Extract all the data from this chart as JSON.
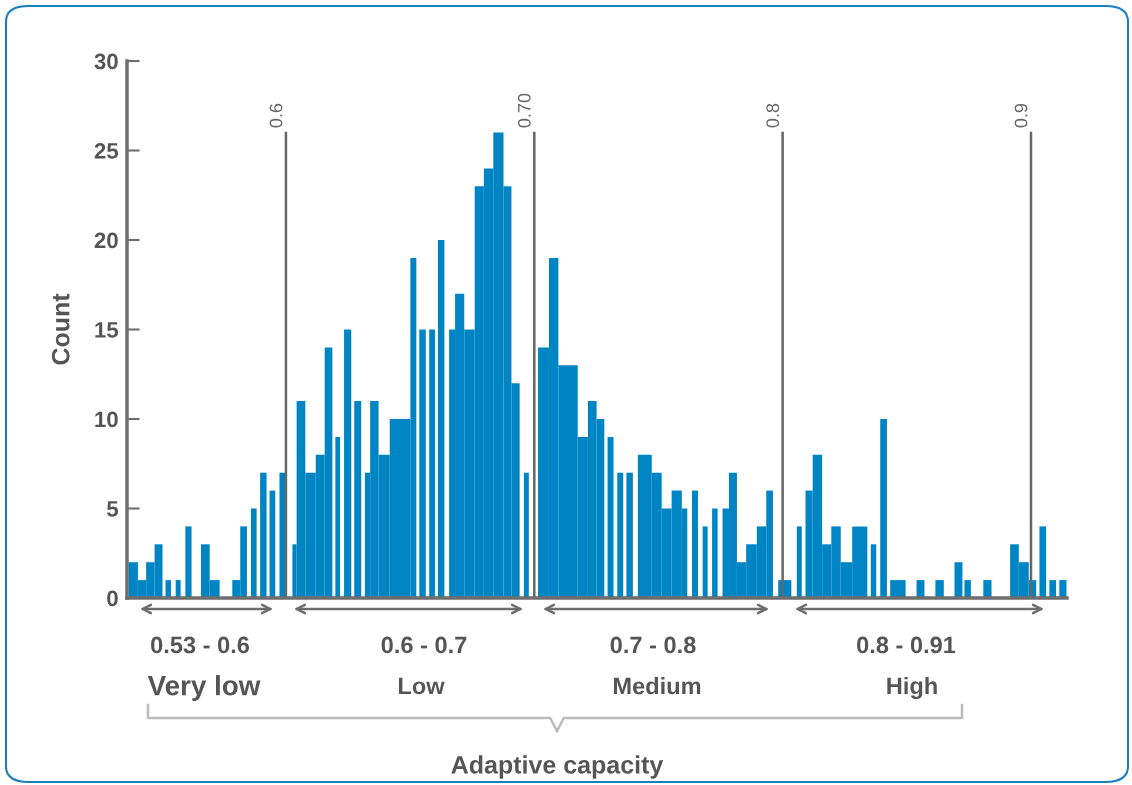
{
  "chart_data": {
    "type": "histogram",
    "ylabel": "Count",
    "bins": [
      0.5366,
      0.5404,
      0.5437,
      0.5471,
      0.5503,
      0.5515,
      0.5537,
      0.5556,
      0.5576,
      0.5595,
      0.562,
      0.5658,
      0.5693,
      0.5733,
      0.5784,
      0.5816,
      0.5843,
      0.5859,
      0.5882,
      0.5896,
      0.5922,
      0.5934,
      0.5957,
      0.5974,
      0.5998,
      0.6026,
      0.6043,
      0.6078,
      0.612,
      0.6156,
      0.6187,
      0.6199,
      0.6218,
      0.6234,
      0.6263,
      0.6275,
      0.6303,
      0.6318,
      0.6339,
      0.6373,
      0.6418,
      0.6501,
      0.6525,
      0.6537,
      0.6563,
      0.6577,
      0.66,
      0.6612,
      0.6638,
      0.6657,
      0.6681,
      0.6718,
      0.676,
      0.6797,
      0.6835,
      0.6876,
      0.6908,
      0.6941,
      0.6958,
      0.6978,
      0.7015,
      0.7059,
      0.7097,
      0.7175,
      0.7216,
      0.7251,
      0.7282,
      0.7295,
      0.7319,
      0.7334,
      0.7358,
      0.7371,
      0.7397,
      0.7417,
      0.7473,
      0.7513,
      0.7553,
      0.7594,
      0.7616,
      0.7635,
      0.7659,
      0.7678,
      0.7698,
      0.7716,
      0.7738,
      0.7758,
      0.7784,
      0.7816,
      0.7853,
      0.7896,
      0.7934,
      0.7961,
      0.7982,
      0.8035,
      0.8057,
      0.8077,
      0.8092,
      0.8121,
      0.8159,
      0.8196,
      0.8234,
      0.828,
      0.8341,
      0.8355,
      0.8377,
      0.8393,
      0.842,
      0.8433,
      0.8495,
      0.8539,
      0.8571,
      0.8615,
      0.8649,
      0.8692,
      0.8724,
      0.8732,
      0.8758,
      0.8808,
      0.8841,
      0.8916,
      0.8951,
      0.8991,
      0.9021,
      0.9034,
      0.9061,
      0.9074,
      0.9101,
      0.9114,
      0.9143
    ],
    "values": [
      2,
      1,
      2,
      3,
      0,
      1,
      0,
      1,
      0,
      4,
      0,
      3,
      1,
      0,
      1,
      4,
      0,
      5,
      0,
      7,
      0,
      6,
      0,
      7,
      0,
      3,
      11,
      7,
      8,
      14,
      0,
      9,
      0,
      15,
      0,
      11,
      0,
      7,
      11,
      8,
      10,
      19,
      0,
      15,
      0,
      15,
      0,
      20,
      0,
      15,
      17,
      15,
      23,
      24,
      26,
      23,
      12,
      0,
      7,
      0,
      14,
      19,
      13,
      9,
      11,
      10,
      0,
      9,
      0,
      7,
      0,
      7,
      0,
      8,
      7,
      5,
      6,
      5,
      0,
      6,
      0,
      4,
      0,
      5,
      0,
      5,
      7,
      2,
      3,
      4,
      6,
      0,
      1,
      0,
      4,
      0,
      6,
      8,
      3,
      4,
      2,
      4,
      0,
      3,
      0,
      10,
      0,
      1,
      0,
      1,
      0,
      1,
      0,
      2,
      0,
      1,
      0,
      1,
      0,
      3,
      2,
      1,
      0,
      4,
      0,
      1,
      0,
      1
    ],
    "color": "#0085c4",
    "xlim": [
      0.536,
      0.9145
    ],
    "ylim": [
      0,
      30
    ],
    "yticks": [
      0,
      5,
      10,
      15,
      20,
      25,
      30
    ],
    "tick_labels": "y",
    "grid": false,
    "legend": false,
    "ref_lines": [
      {
        "axis": "x",
        "value": 0.6,
        "label": "0.6",
        "color": "#666666"
      },
      {
        "axis": "x",
        "value": 0.7,
        "label": "0.70",
        "color": "#666666"
      },
      {
        "axis": "x",
        "value": 0.8,
        "label": "0.8",
        "color": "#666666"
      },
      {
        "axis": "x",
        "value": 0.9,
        "label": "0.9",
        "color": "#666666"
      }
    ],
    "annotations": [
      "0.53 - 0.6",
      "Very low",
      "0.6 - 0.7",
      "Low",
      "0.7 - 0.8",
      "Medium",
      "0.8 - 0.91",
      "High",
      "Adaptive capacity"
    ]
  }
}
